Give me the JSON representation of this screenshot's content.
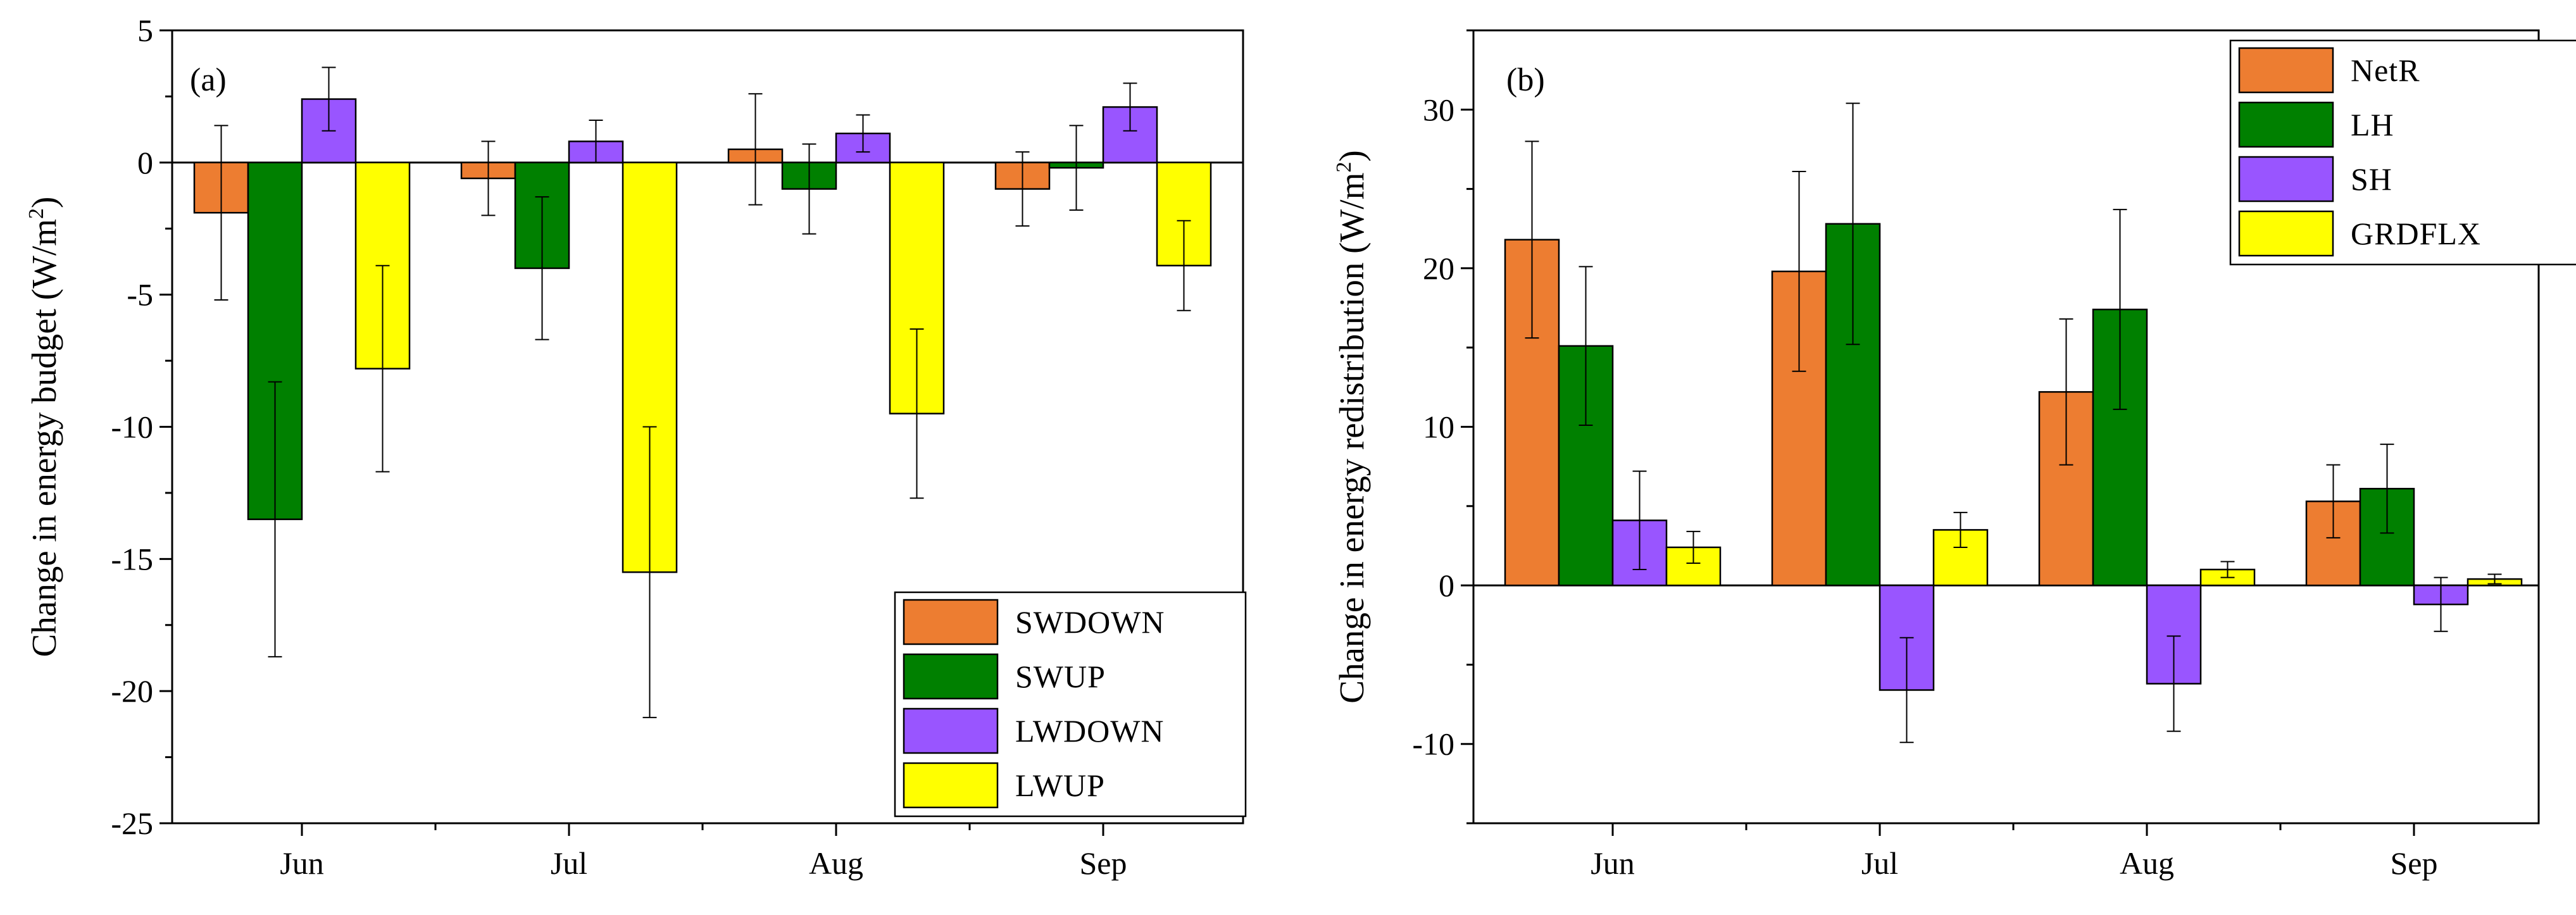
{
  "chart_data": [
    {
      "type": "bar",
      "panel_label": "(a)",
      "title": "",
      "xlabel": "",
      "ylabel": "Change in energy budget (W/m",
      "ylabel_sup": "2",
      "ylabel_end": ")",
      "ylim": [
        -25,
        5
      ],
      "yticks": [
        5,
        0,
        -5,
        -10,
        -15,
        -20,
        -25
      ],
      "categories": [
        "Jun",
        "Jul",
        "Aug",
        "Sep"
      ],
      "grid": false,
      "legend_position": "bottom-right",
      "series": [
        {
          "name": "SWDOWN",
          "color": "#ED7D31",
          "values": [
            -1.9,
            -0.6,
            0.5,
            -1.0
          ],
          "errors": [
            3.3,
            1.4,
            2.1,
            1.4
          ]
        },
        {
          "name": "SWUP",
          "color": "#008000",
          "values": [
            -13.5,
            -4.0,
            -1.0,
            -0.2
          ],
          "errors": [
            5.2,
            2.7,
            1.7,
            1.6
          ]
        },
        {
          "name": "LWDOWN",
          "color": "#9955FF",
          "values": [
            2.4,
            0.8,
            1.1,
            2.1
          ],
          "errors": [
            1.2,
            0.8,
            0.7,
            0.9
          ]
        },
        {
          "name": "LWUP",
          "color": "#FFFF00",
          "values": [
            -7.8,
            -15.5,
            -9.5,
            -3.9
          ],
          "errors": [
            3.9,
            5.5,
            3.2,
            1.7
          ]
        }
      ]
    },
    {
      "type": "bar",
      "panel_label": "(b)",
      "title": "",
      "xlabel": "",
      "ylabel": "Change in energy redistribution (W/m",
      "ylabel_sup": "2",
      "ylabel_end": ")",
      "ylim": [
        -15,
        35
      ],
      "yticks": [
        30,
        20,
        10,
        0,
        -10
      ],
      "categories": [
        "Jun",
        "Jul",
        "Aug",
        "Sep"
      ],
      "grid": false,
      "legend_position": "top-right",
      "series": [
        {
          "name": "NetR",
          "color": "#ED7D31",
          "values": [
            21.8,
            19.8,
            12.2,
            5.3
          ],
          "errors": [
            6.2,
            6.3,
            4.6,
            2.3
          ]
        },
        {
          "name": "LH",
          "color": "#008000",
          "values": [
            15.1,
            22.8,
            17.4,
            6.1
          ],
          "errors": [
            5.0,
            7.6,
            6.3,
            2.8
          ]
        },
        {
          "name": "SH",
          "color": "#9955FF",
          "values": [
            4.1,
            -6.6,
            -6.2,
            -1.2
          ],
          "errors": [
            3.1,
            3.3,
            3.0,
            1.7
          ]
        },
        {
          "name": "GRDFLX",
          "color": "#FFFF00",
          "values": [
            2.4,
            3.5,
            1.0,
            0.4
          ],
          "errors": [
            1.0,
            1.1,
            0.5,
            0.3
          ]
        }
      ]
    }
  ]
}
